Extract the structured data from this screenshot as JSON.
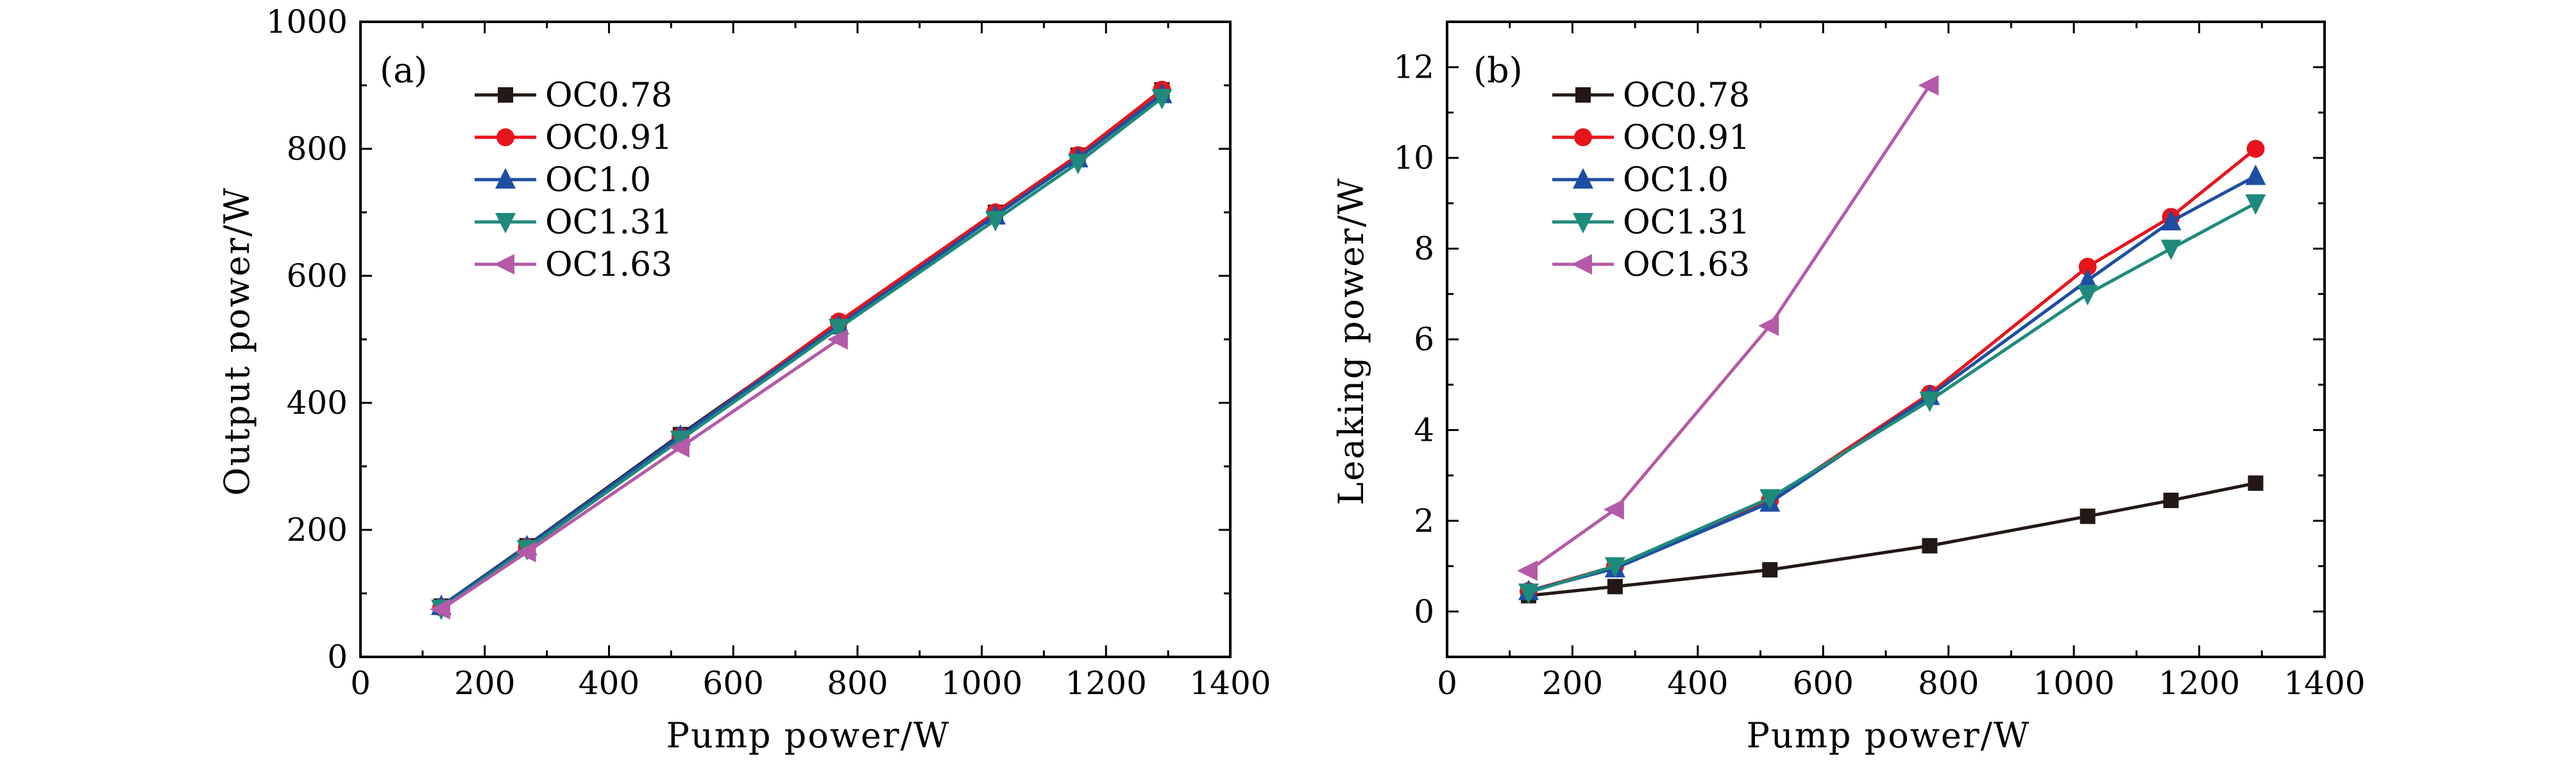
{
  "chart_data": [
    {
      "type": "line",
      "panel_label": "(a)",
      "xlabel": "Pump power/W",
      "ylabel": "Output power/W",
      "xlim": [
        0,
        1400
      ],
      "ylim": [
        0,
        1000
      ],
      "xticks": [
        0,
        200,
        400,
        600,
        800,
        1000,
        1200,
        1400
      ],
      "yticks": [
        0,
        200,
        400,
        600,
        800,
        1000
      ],
      "grid": false,
      "legend_position": "top-left",
      "series": [
        {
          "name": "OC0.78",
          "color": "#231815",
          "marker": "square",
          "x": [
            130,
            268,
            515,
            770,
            1022,
            1155,
            1290
          ],
          "y": [
            80,
            175,
            350,
            525,
            700,
            790,
            893
          ]
        },
        {
          "name": "OC0.91",
          "color": "#e8141b",
          "marker": "circle",
          "x": [
            130,
            268,
            515,
            770,
            1022,
            1155,
            1290
          ],
          "y": [
            78,
            173,
            347,
            528,
            700,
            790,
            893
          ]
        },
        {
          "name": "OC1.0",
          "color": "#1d4ea2",
          "marker": "triangle-up",
          "x": [
            130,
            268,
            515,
            770,
            1022,
            1155,
            1290
          ],
          "y": [
            80,
            174,
            348,
            522,
            695,
            785,
            886
          ]
        },
        {
          "name": "OC1.31",
          "color": "#1f8a7b",
          "marker": "triangle-down",
          "x": [
            130,
            268,
            515,
            770,
            1022,
            1155,
            1290
          ],
          "y": [
            76,
            170,
            342,
            518,
            688,
            778,
            880
          ]
        },
        {
          "name": "OC1.63",
          "color": "#b45aa8",
          "marker": "triangle-left",
          "x": [
            130,
            268,
            515,
            770
          ],
          "y": [
            75,
            165,
            330,
            500
          ]
        }
      ]
    },
    {
      "type": "line",
      "panel_label": "(b)",
      "xlabel": "Pump power/W",
      "ylabel": "Leaking power/W",
      "xlim": [
        0,
        1400
      ],
      "ylim": [
        -1,
        13
      ],
      "xticks": [
        0,
        200,
        400,
        600,
        800,
        1000,
        1200,
        1400
      ],
      "yticks": [
        0,
        2,
        4,
        6,
        8,
        10,
        12
      ],
      "grid": false,
      "legend_position": "top-left",
      "series": [
        {
          "name": "OC0.78",
          "color": "#231815",
          "marker": "square",
          "x": [
            130,
            268,
            515,
            770,
            1022,
            1155,
            1290
          ],
          "y": [
            0.35,
            0.55,
            0.92,
            1.45,
            2.1,
            2.45,
            2.83
          ]
        },
        {
          "name": "OC0.91",
          "color": "#e8141b",
          "marker": "circle",
          "x": [
            130,
            268,
            515,
            770,
            1022,
            1155,
            1290
          ],
          "y": [
            0.45,
            1.0,
            2.45,
            4.8,
            7.6,
            8.7,
            10.2
          ]
        },
        {
          "name": "OC1.0",
          "color": "#1d4ea2",
          "marker": "triangle-up",
          "x": [
            130,
            268,
            515,
            770,
            1022,
            1155,
            1290
          ],
          "y": [
            0.45,
            0.95,
            2.4,
            4.75,
            7.3,
            8.6,
            9.6
          ]
        },
        {
          "name": "OC1.31",
          "color": "#1f8a7b",
          "marker": "triangle-down",
          "x": [
            130,
            268,
            515,
            770,
            1022,
            1155,
            1290
          ],
          "y": [
            0.42,
            1.0,
            2.5,
            4.65,
            7.0,
            8.0,
            9.0
          ]
        },
        {
          "name": "OC1.63",
          "color": "#b45aa8",
          "marker": "triangle-left",
          "x": [
            130,
            268,
            515,
            770
          ],
          "y": [
            0.9,
            2.25,
            6.3,
            11.6
          ]
        }
      ]
    }
  ]
}
